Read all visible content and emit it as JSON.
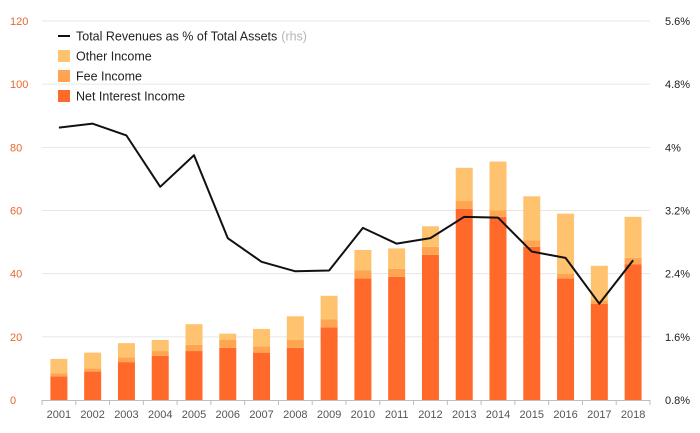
{
  "colors": {
    "net_interest": "#ff6a2b",
    "fee": "#ffa552",
    "other": "#ffc26e",
    "line": "#111111",
    "left_axis": "#e8672f",
    "grid": "#e6e6e6"
  },
  "chart_data": {
    "type": "bar",
    "stacked": true,
    "title": "",
    "categories": [
      "2001",
      "2002",
      "2003",
      "2004",
      "2005",
      "2006",
      "2007",
      "2008",
      "2009",
      "2010",
      "2011",
      "2012",
      "2013",
      "2014",
      "2015",
      "2016",
      "2017",
      "2018"
    ],
    "series": [
      {
        "name": "Net Interest Income",
        "axis": "left",
        "color_key": "net_interest",
        "values": [
          7.5,
          9,
          12,
          14,
          15.5,
          16.5,
          15,
          16.5,
          23,
          38.5,
          39,
          46,
          60.5,
          58,
          48.5,
          38.5,
          30.5,
          43
        ]
      },
      {
        "name": "Fee Income",
        "axis": "left",
        "color_key": "fee",
        "values": [
          1,
          1,
          1.5,
          1.5,
          2,
          2.5,
          2,
          2.5,
          2.5,
          2.5,
          2.5,
          2.5,
          2.5,
          2,
          2,
          1.5,
          1,
          2
        ]
      },
      {
        "name": "Other Income",
        "axis": "left",
        "color_key": "other",
        "values": [
          4.5,
          5,
          4.5,
          3.5,
          6.5,
          2,
          5.5,
          7.5,
          7.5,
          6.5,
          6.5,
          6.5,
          10.5,
          15.5,
          14,
          19,
          11,
          13
        ]
      },
      {
        "name": "Total Revenues as % of Total Assets",
        "axis": "right",
        "type": "line",
        "color_key": "line",
        "values": [
          4.25,
          4.3,
          4.15,
          3.5,
          3.9,
          2.85,
          2.55,
          2.43,
          2.44,
          2.98,
          2.78,
          2.85,
          3.12,
          3.11,
          2.68,
          2.6,
          2.02,
          2.57
        ]
      }
    ],
    "legend": [
      {
        "label": "Total Revenues as % of Total Assets",
        "suffix": "(rhs)",
        "kind": "line",
        "color_key": "line"
      },
      {
        "label": "Other Income",
        "kind": "box",
        "color_key": "other"
      },
      {
        "label": "Fee Income",
        "kind": "box",
        "color_key": "fee"
      },
      {
        "label": "Net Interest Income",
        "kind": "box",
        "color_key": "net_interest"
      }
    ],
    "legend_position": "top-left",
    "ylim": [
      0,
      120
    ],
    "yticks": [
      0,
      20,
      40,
      60,
      80,
      100,
      120
    ],
    "y2lim": [
      0.8,
      5.6
    ],
    "y2ticks": [
      0.8,
      1.6,
      2.4,
      3.2,
      4.0,
      4.8,
      5.6
    ],
    "y2tick_labels": [
      "0.8%",
      "1.6%",
      "2.4%",
      "3.2%",
      "4%",
      "4.8%",
      "5.6%"
    ],
    "grid": true,
    "xlabel": "",
    "ylabel": "",
    "y2label": ""
  }
}
